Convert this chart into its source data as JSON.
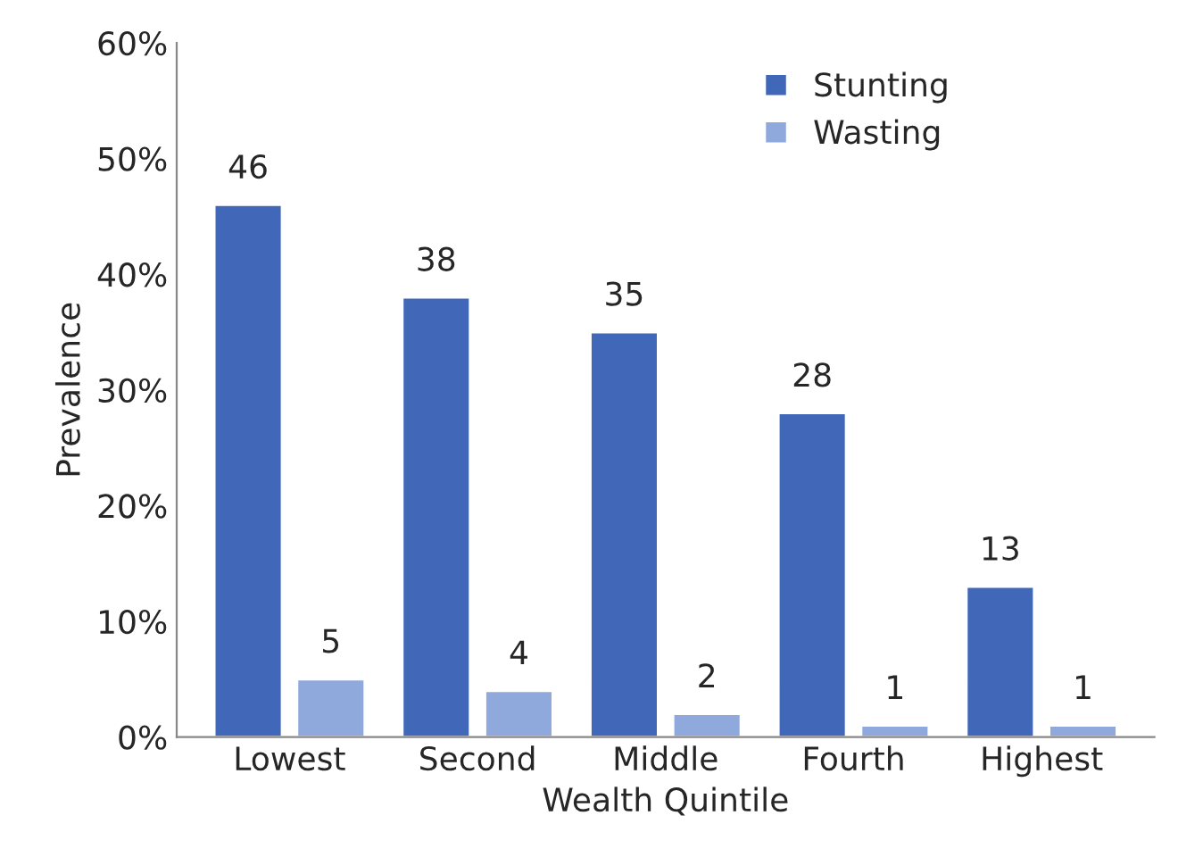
{
  "chart_data": {
    "type": "bar",
    "xlabel": "Wealth Quintile",
    "ylabel": "Prevalence",
    "categories": [
      "Lowest",
      "Second",
      "Middle",
      "Fourth",
      "Highest"
    ],
    "series": [
      {
        "name": "Stunting",
        "color": "#4167b8",
        "values": [
          46,
          38,
          35,
          28,
          13
        ]
      },
      {
        "name": "Wasting",
        "color": "#8fa9dc",
        "values": [
          5,
          4,
          2,
          1,
          1
        ]
      }
    ],
    "ylim": [
      0,
      60
    ],
    "yticks": [
      {
        "value": 0,
        "label": "0%"
      },
      {
        "value": 10,
        "label": "10%"
      },
      {
        "value": 20,
        "label": "20%"
      },
      {
        "value": 30,
        "label": "30%"
      },
      {
        "value": 40,
        "label": "40%"
      },
      {
        "value": 50,
        "label": "50%"
      },
      {
        "value": 60,
        "label": "60%"
      }
    ],
    "data_labels": true,
    "grid": false,
    "legend": "top right"
  }
}
